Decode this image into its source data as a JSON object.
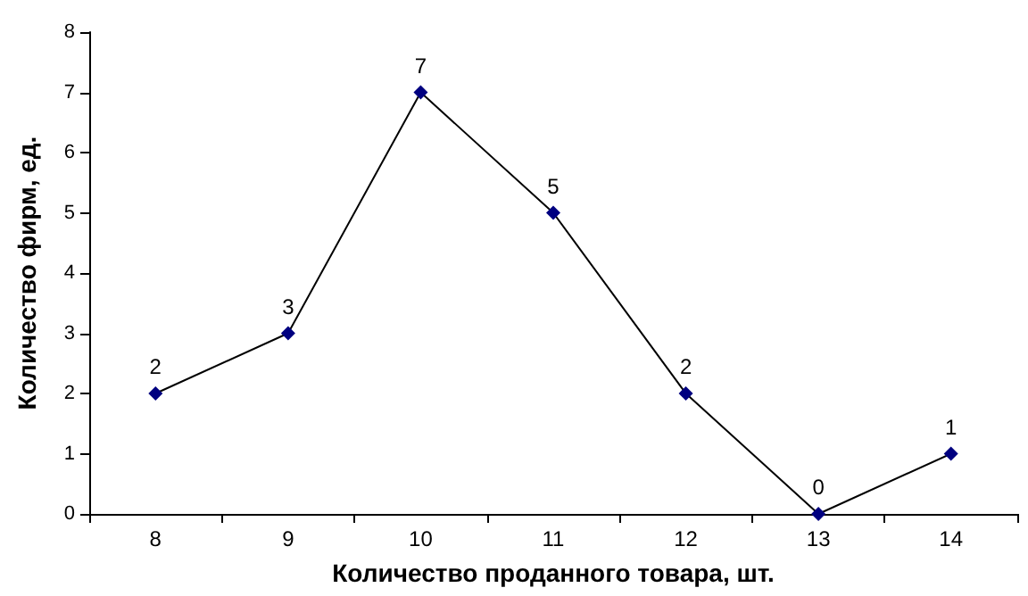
{
  "chart_data": {
    "type": "line",
    "xlabel": "Количество проданного товара, шт.",
    "ylabel": "Количество фирм, ед.",
    "categories": [
      "8",
      "9",
      "10",
      "11",
      "12",
      "13",
      "14"
    ],
    "series": [
      {
        "color": "#000080",
        "values": [
          2,
          3,
          7,
          5,
          2,
          0,
          1
        ]
      }
    ],
    "ylim": [
      0,
      8
    ],
    "yticks": [
      0,
      1,
      2,
      3,
      4,
      5,
      6,
      7,
      8
    ],
    "grid": false,
    "marker": "diamond",
    "line_style": "solid",
    "data_labels": true
  }
}
